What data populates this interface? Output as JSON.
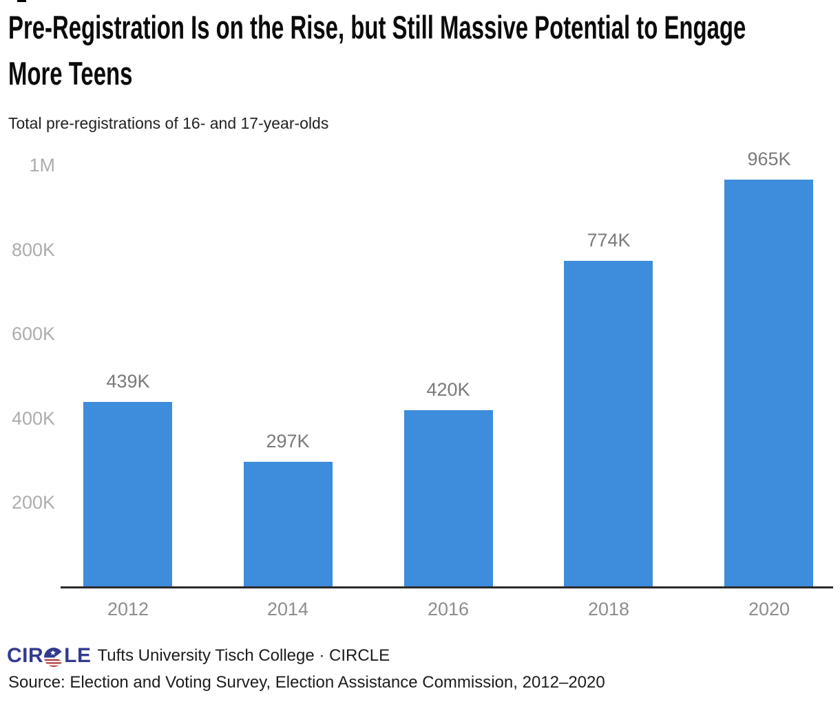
{
  "header": {
    "title_line1": "Pre-Registration Is on the Rise, but Still Massive Potential to Engage",
    "title_line2": "More Teens",
    "title_full": "Pre-Registration Is on the Rise, but Still Massive Potential to Engage More Teens",
    "subtitle": "Total pre-registrations of 16- and 17-year-olds"
  },
  "chart_data": {
    "type": "bar",
    "title": "Pre-Registration Is on the Rise, but Still Massive Potential to Engage More Teens",
    "subtitle": "Total pre-registrations of 16- and 17-year-olds",
    "categories": [
      "2012",
      "2014",
      "2016",
      "2018",
      "2020"
    ],
    "values": [
      439000,
      297000,
      420000,
      774000,
      965000
    ],
    "value_labels": [
      "439K",
      "297K",
      "420K",
      "774K",
      "965K"
    ],
    "xlabel": "",
    "ylabel": "",
    "ylim": [
      0,
      1000000
    ],
    "yticks": [
      {
        "label": "200K",
        "value": 200000
      },
      {
        "label": "400K",
        "value": 400000
      },
      {
        "label": "600K",
        "value": 600000
      },
      {
        "label": "800K",
        "value": 800000
      },
      {
        "label": "1M",
        "value": 1000000
      }
    ],
    "grid": false,
    "legend": "none",
    "bar_color": "#3e8cdc"
  },
  "footer": {
    "logo_prefix": "CIR",
    "logo_suffix": "LE",
    "logo_name": "CIRCLE",
    "attribution": "Tufts University Tisch College · CIRCLE",
    "source": "Source: Election and Voting Survey, Election Assistance Commission, 2012–2020"
  },
  "colors": {
    "bar": "#3e8cdc",
    "axis_line": "#2a2a2a",
    "y_tick_label": "#adadad",
    "x_tick_label": "#8d8d8d",
    "value_label": "#7a7a7a",
    "title": "#0b0b0b",
    "subtitle": "#222222",
    "footer_text": "#1c1c1c",
    "logo_navy": "#333a8e",
    "logo_red": "#b23533"
  }
}
